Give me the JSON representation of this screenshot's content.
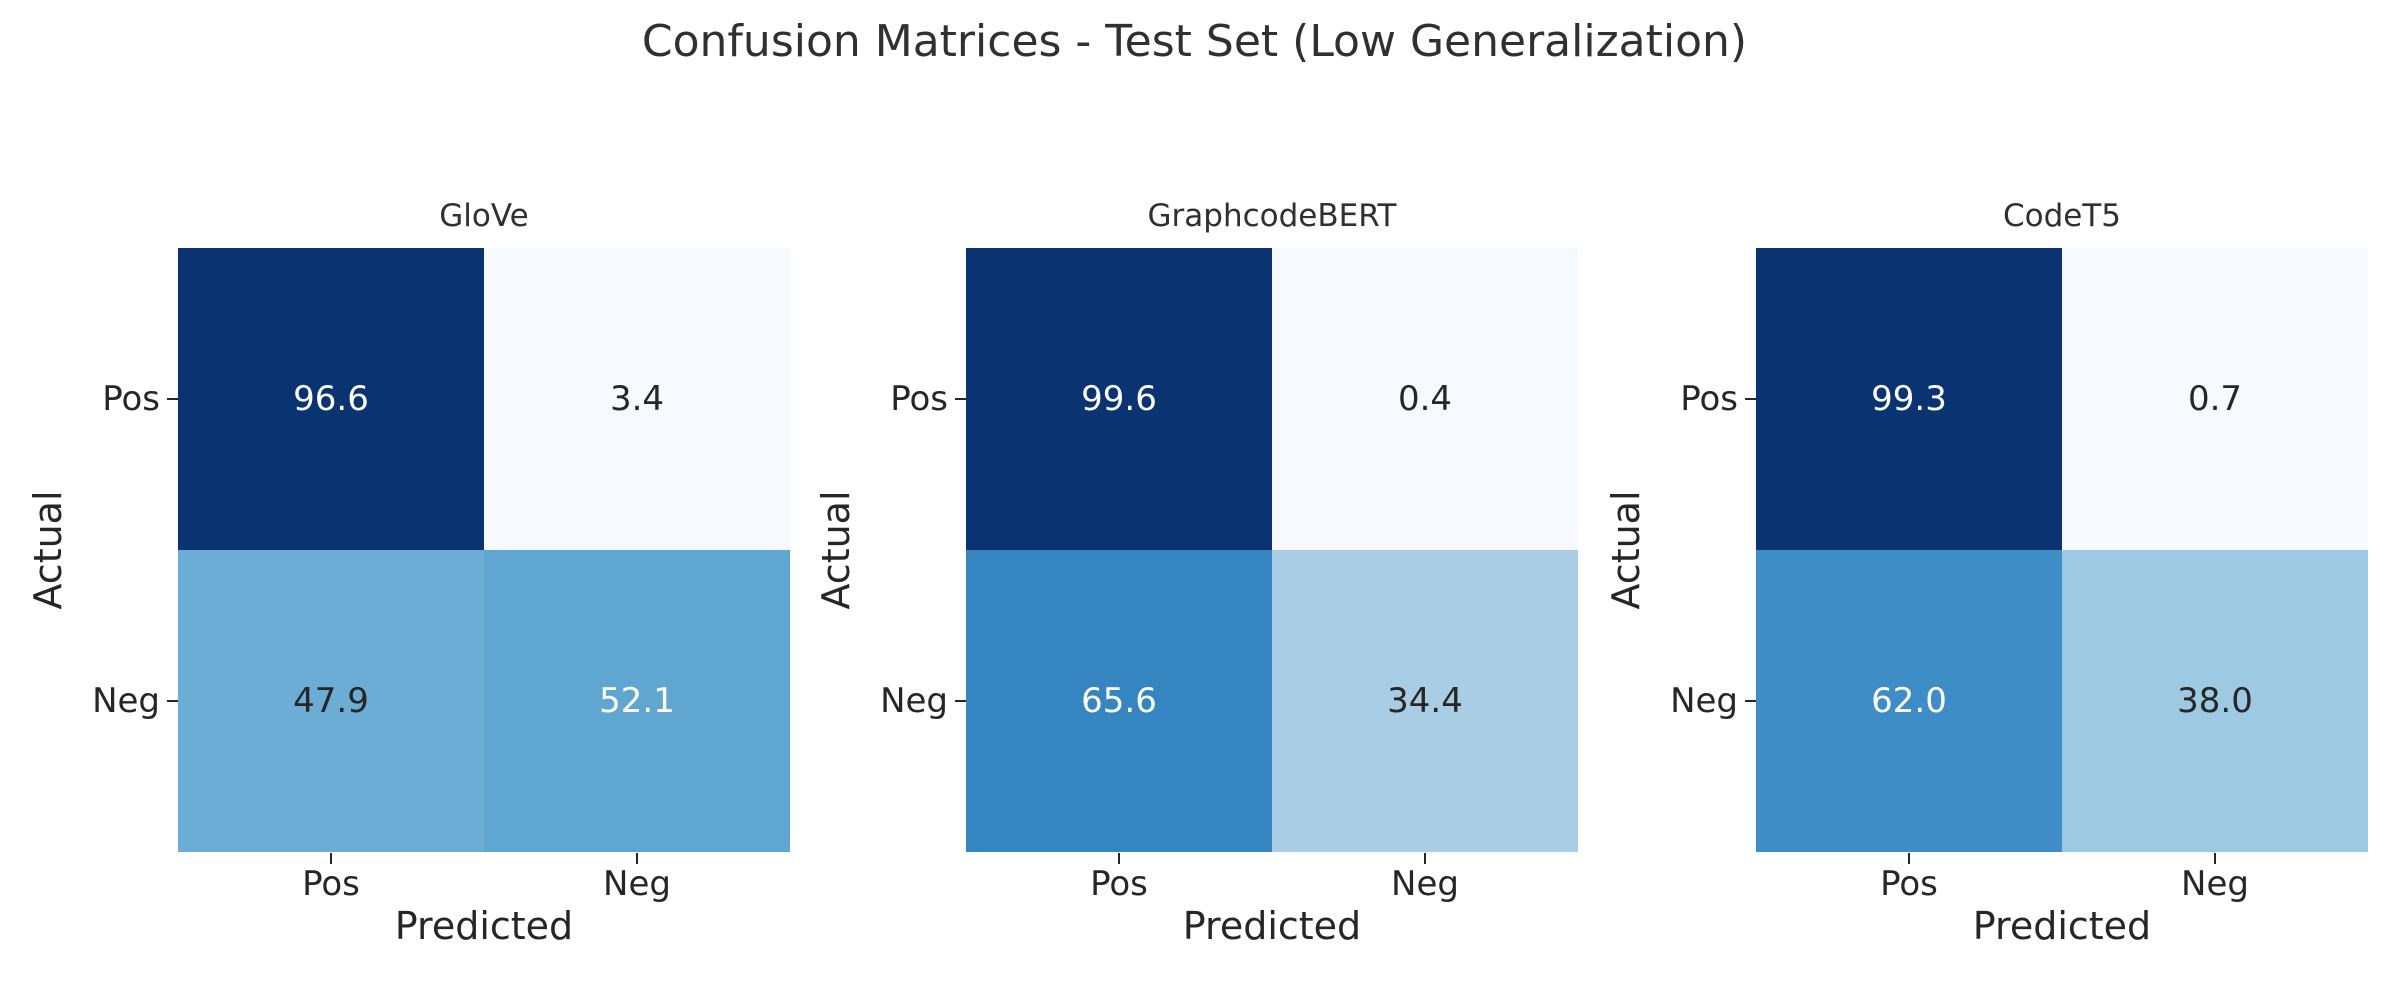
{
  "figure": {
    "suptitle": "Confusion Matrices - Test Set (Low Generalization)",
    "background": "#ffffff"
  },
  "axis": {
    "xlabel": "Predicted",
    "ylabel": "Actual",
    "xticks": [
      "Pos",
      "Neg"
    ],
    "yticks": [
      "Pos",
      "Neg"
    ]
  },
  "colors": {
    "dark_cell": "#0a3371",
    "light_cell": "#f6f9fe",
    "text_dark": "#262626",
    "text_light": "#ffffff"
  },
  "panels": [
    {
      "title": "GloVe",
      "cells": [
        {
          "value": "96.6",
          "bg": "#0a3371",
          "fg": "#ffffff"
        },
        {
          "value": "3.4",
          "bg": "#f6f9fe",
          "fg": "#262626"
        },
        {
          "value": "47.9",
          "bg": "#6cadd5",
          "fg": "#262626"
        },
        {
          "value": "52.1",
          "bg": "#5fa6d1",
          "fg": "#ffffff"
        }
      ]
    },
    {
      "title": "GraphcodeBERT",
      "cells": [
        {
          "value": "99.6",
          "bg": "#0a3371",
          "fg": "#ffffff"
        },
        {
          "value": "0.4",
          "bg": "#f6f9fe",
          "fg": "#262626"
        },
        {
          "value": "65.6",
          "bg": "#3585c1",
          "fg": "#ffffff"
        },
        {
          "value": "34.4",
          "bg": "#a9cde4",
          "fg": "#262626"
        }
      ]
    },
    {
      "title": "CodeT5",
      "cells": [
        {
          "value": "99.3",
          "bg": "#0a3371",
          "fg": "#ffffff"
        },
        {
          "value": "0.7",
          "bg": "#f6f9fe",
          "fg": "#262626"
        },
        {
          "value": "62.0",
          "bg": "#3f8dc6",
          "fg": "#ffffff"
        },
        {
          "value": "38.0",
          "bg": "#9dc9e2",
          "fg": "#262626"
        }
      ]
    }
  ],
  "chart_data": {
    "figure_title": "Confusion Matrices - Test Set (Low Generalization)",
    "subplots": [
      {
        "type": "heatmap",
        "title": "GloVe",
        "x_categories": [
          "Pos",
          "Neg"
        ],
        "y_categories": [
          "Pos",
          "Neg"
        ],
        "xlabel": "Predicted",
        "ylabel": "Actual",
        "values": [
          [
            96.6,
            3.4
          ],
          [
            47.9,
            52.1
          ]
        ],
        "colormap": "Blues",
        "annotated": true,
        "colorbar": false
      },
      {
        "type": "heatmap",
        "title": "GraphcodeBERT",
        "x_categories": [
          "Pos",
          "Neg"
        ],
        "y_categories": [
          "Pos",
          "Neg"
        ],
        "xlabel": "Predicted",
        "ylabel": "Actual",
        "values": [
          [
            99.6,
            0.4
          ],
          [
            65.6,
            34.4
          ]
        ],
        "colormap": "Blues",
        "annotated": true,
        "colorbar": false
      },
      {
        "type": "heatmap",
        "title": "CodeT5",
        "x_categories": [
          "Pos",
          "Neg"
        ],
        "y_categories": [
          "Pos",
          "Neg"
        ],
        "xlabel": "Predicted",
        "ylabel": "Actual",
        "values": [
          [
            99.3,
            0.7
          ],
          [
            62.0,
            38.0
          ]
        ],
        "colormap": "Blues",
        "annotated": true,
        "colorbar": false
      }
    ]
  }
}
